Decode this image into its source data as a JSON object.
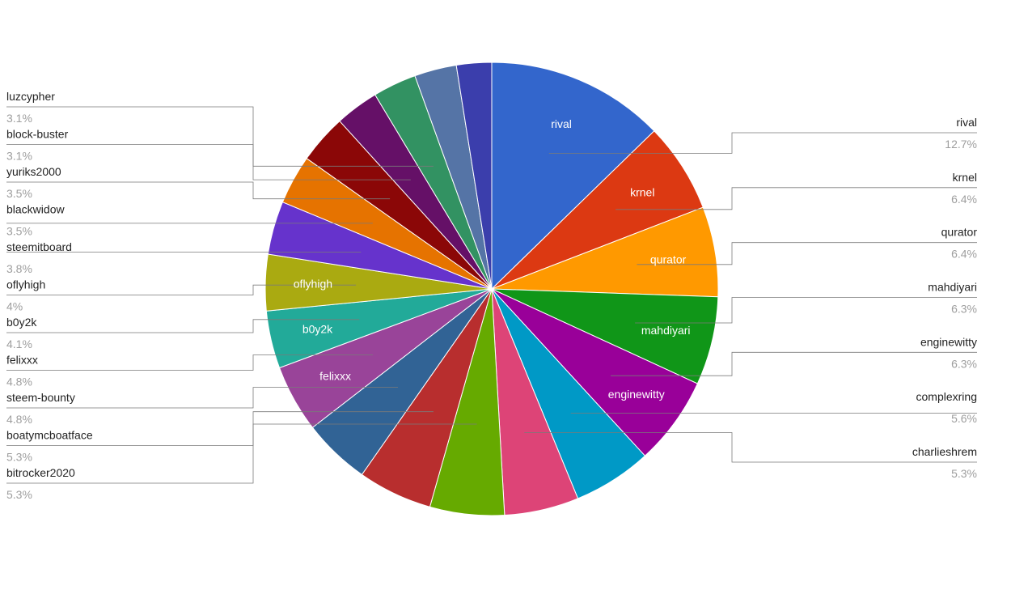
{
  "chart_data": {
    "type": "pie",
    "title": "",
    "legend": "labeled callouts",
    "start_angle_deg": 0,
    "slices": [
      {
        "label": "rival",
        "pct_text": "12.7%",
        "value": 12.7,
        "color": "#3366cc",
        "inner_label": "rival",
        "side": "right"
      },
      {
        "label": "krnel",
        "pct_text": "6.4%",
        "value": 6.4,
        "color": "#dc3912",
        "inner_label": "krnel",
        "side": "right"
      },
      {
        "label": "qurator",
        "pct_text": "6.4%",
        "value": 6.4,
        "color": "#ff9900",
        "inner_label": "qurator",
        "side": "right"
      },
      {
        "label": "mahdiyari",
        "pct_text": "6.3%",
        "value": 6.3,
        "color": "#109618",
        "inner_label": "mahdiyari",
        "side": "right"
      },
      {
        "label": "enginewitty",
        "pct_text": "6.3%",
        "value": 6.3,
        "color": "#990099",
        "inner_label": "enginewitty",
        "side": "right"
      },
      {
        "label": "complexring",
        "pct_text": "5.6%",
        "value": 5.6,
        "color": "#0099c6",
        "inner_label": "",
        "side": "right"
      },
      {
        "label": "charlieshrem",
        "pct_text": "5.3%",
        "value": 5.3,
        "color": "#dd4477",
        "inner_label": "",
        "side": "right"
      },
      {
        "label": "bitrocker2020",
        "pct_text": "5.3%",
        "value": 5.3,
        "color": "#66aa00",
        "inner_label": "",
        "side": "left"
      },
      {
        "label": "boatymcboatface",
        "pct_text": "5.3%",
        "value": 5.3,
        "color": "#b82e2e",
        "inner_label": "",
        "side": "left"
      },
      {
        "label": "steem-bounty",
        "pct_text": "4.8%",
        "value": 4.8,
        "color": "#316395",
        "inner_label": "",
        "side": "left"
      },
      {
        "label": "felixxx",
        "pct_text": "4.8%",
        "value": 4.8,
        "color": "#994499",
        "inner_label": "felixxx",
        "side": "left"
      },
      {
        "label": "b0y2k",
        "pct_text": "4.1%",
        "value": 4.1,
        "color": "#22aa99",
        "inner_label": "b0y2k",
        "side": "left"
      },
      {
        "label": "oflyhigh",
        "pct_text": "4%",
        "value": 4.0,
        "color": "#aaaa11",
        "inner_label": "oflyhigh",
        "side": "left"
      },
      {
        "label": "steemitboard",
        "pct_text": "3.8%",
        "value": 3.8,
        "color": "#6633cc",
        "inner_label": "",
        "side": "left"
      },
      {
        "label": "blackwidow",
        "pct_text": "3.5%",
        "value": 3.5,
        "color": "#e67300",
        "inner_label": "",
        "side": "left"
      },
      {
        "label": "yuriks2000",
        "pct_text": "3.5%",
        "value": 3.5,
        "color": "#8b0707",
        "inner_label": "",
        "side": "left"
      },
      {
        "label": "block-buster",
        "pct_text": "3.1%",
        "value": 3.1,
        "color": "#651067",
        "inner_label": "",
        "side": "left"
      },
      {
        "label": "luzcypher",
        "pct_text": "3.1%",
        "value": 3.1,
        "color": "#329262",
        "inner_label": "",
        "side": "left"
      },
      {
        "label": "",
        "pct_text": "",
        "value": 3.0,
        "color": "#5574a6",
        "inner_label": "",
        "side": "none"
      },
      {
        "label": "",
        "pct_text": "",
        "value": 2.5,
        "color": "#3b3eac",
        "inner_label": "",
        "side": "none"
      }
    ]
  }
}
